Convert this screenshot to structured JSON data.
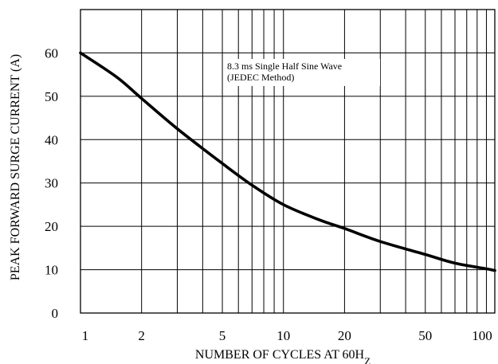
{
  "chart_data": {
    "type": "line",
    "title": "",
    "xlabel": "NUMBER OF CYCLES AT 60Hz",
    "xlabel_main": "NUMBER OF CYCLES AT 60H",
    "xlabel_sub": "Z",
    "ylabel": "PEAK FORWARD SURGE CURRENT (A)",
    "x_scale": "log",
    "xlim": [
      1,
      110
    ],
    "ylim": [
      0,
      70
    ],
    "x_ticks": [
      1,
      2,
      5,
      10,
      20,
      50,
      100
    ],
    "x_tick_labels": [
      "1",
      "2",
      "5",
      "10",
      "20",
      "50",
      "100"
    ],
    "x_gridlines": [
      1,
      2,
      3,
      4,
      5,
      6,
      7,
      8,
      9,
      10,
      20,
      30,
      40,
      50,
      60,
      70,
      80,
      90,
      100
    ],
    "y_ticks": [
      0,
      10,
      20,
      30,
      40,
      50,
      60
    ],
    "y_tick_labels": [
      "0",
      "10",
      "20",
      "30",
      "40",
      "50",
      "60"
    ],
    "y_gridlines": [
      10,
      20,
      30,
      40,
      50,
      60
    ],
    "grid": true,
    "line_color": "#000000",
    "annotation": [
      "8.3 ms Single Half Sine Wave",
      "(JEDEC Method)"
    ],
    "series": [
      {
        "name": "",
        "x": [
          1,
          1.5,
          2,
          3,
          5,
          7,
          10,
          15,
          20,
          30,
          50,
          70,
          100,
          110
        ],
        "y": [
          60,
          54.5,
          49.5,
          42.5,
          34.5,
          29.5,
          25,
          21.5,
          19.5,
          16.5,
          13.5,
          11.5,
          10.2,
          9.8
        ]
      }
    ]
  }
}
